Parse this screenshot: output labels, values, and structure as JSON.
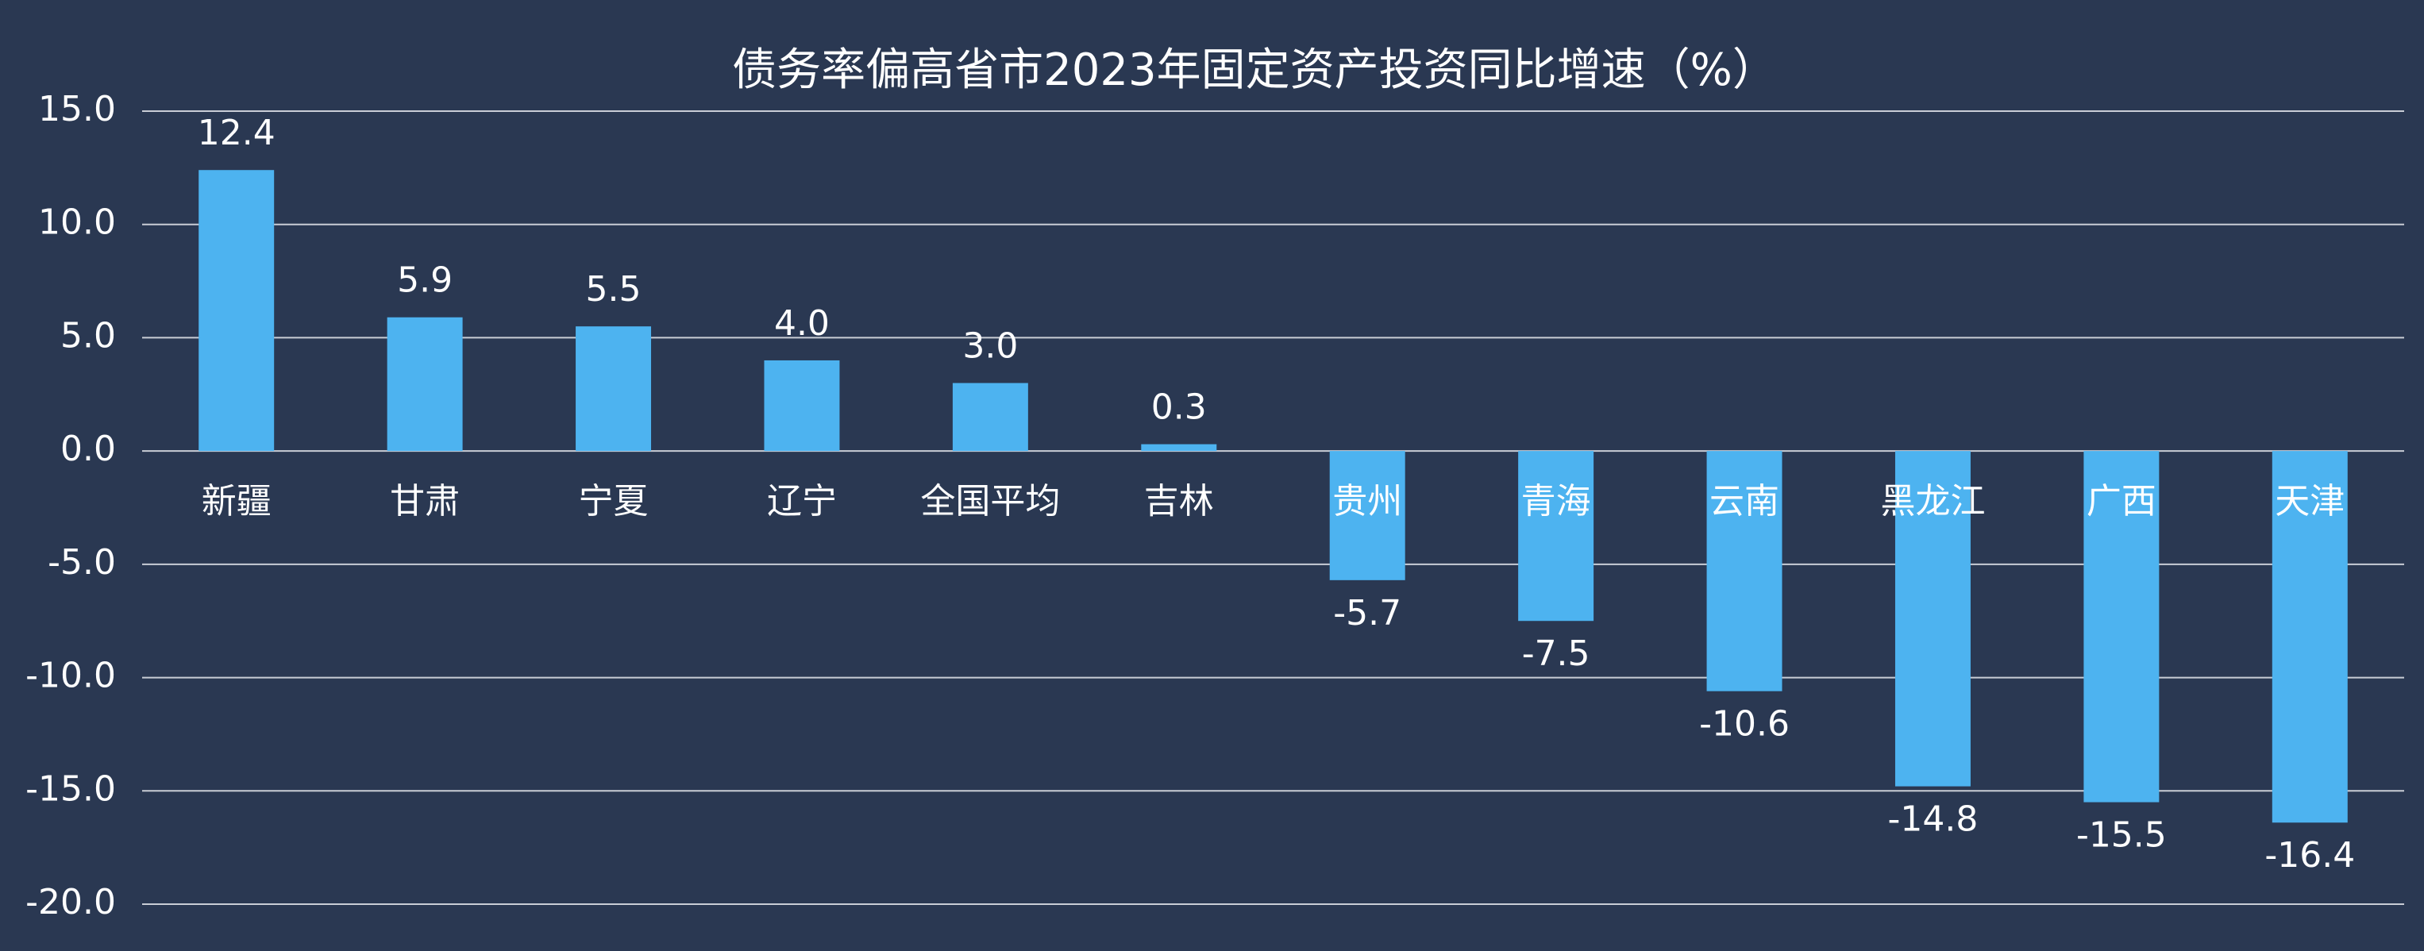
{
  "chart_data": {
    "type": "bar",
    "title": "债务率偏高省市2023年固定资产投资同比增速（%）",
    "categories": [
      "新疆",
      "甘肃",
      "宁夏",
      "辽宁",
      "全国平均",
      "吉林",
      "贵州",
      "青海",
      "云南",
      "黑龙江",
      "广西",
      "天津"
    ],
    "values": [
      12.4,
      5.9,
      5.5,
      4.0,
      3.0,
      0.3,
      -5.7,
      -7.5,
      -10.6,
      -14.8,
      -15.5,
      -16.4
    ],
    "value_labels": [
      "12.4",
      "5.9",
      "5.5",
      "4.0",
      "3.0",
      "0.3",
      "-5.7",
      "-7.5",
      "-10.6",
      "-14.8",
      "-15.5",
      "-16.4"
    ],
    "color": "#4db3f0",
    "ylim": [
      -20,
      15
    ],
    "yticks": [
      {
        "value": 15,
        "label": "15.0"
      },
      {
        "value": 10,
        "label": "10.0"
      },
      {
        "value": 5,
        "label": "5.0"
      },
      {
        "value": 0,
        "label": "0.0"
      },
      {
        "value": -5,
        "label": "-5.0"
      },
      {
        "value": -10,
        "label": "-10.0"
      },
      {
        "value": -15,
        "label": "-15.0"
      },
      {
        "value": -20,
        "label": "-20.0"
      }
    ],
    "grid": true
  }
}
